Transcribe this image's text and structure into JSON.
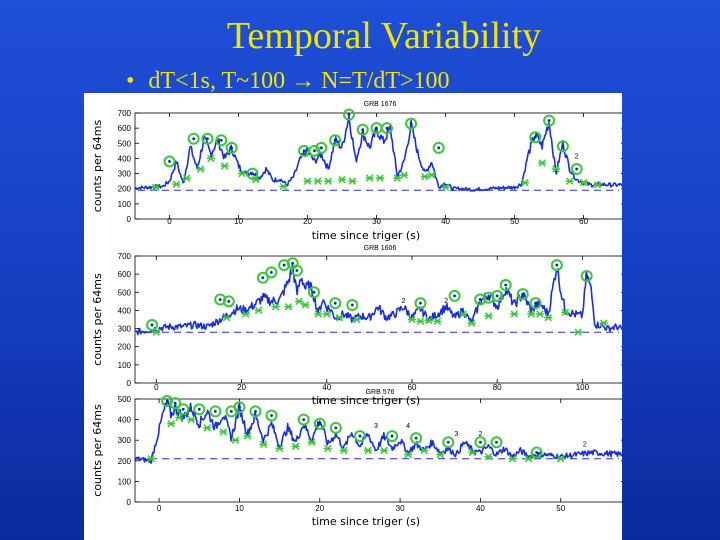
{
  "slide": {
    "title": "Temporal Variability",
    "bullet": "dT<1s,  T~100 → N=T/dT>100",
    "bullet_symbol": "•"
  },
  "colors": {
    "title": "#f2e600",
    "curve": "#1a2fd6",
    "peak_marker": "#39c739",
    "valley_marker": "#39c739",
    "baseline": "#1a2fd6"
  },
  "chart_data": [
    {
      "type": "line",
      "title": "GRB 1676",
      "xlabel": "time since triger (s)",
      "ylabel": "counts per 64ms",
      "xlim": [
        -5,
        66
      ],
      "ylim": [
        0,
        700
      ],
      "xticks": [
        0,
        10,
        20,
        30,
        40,
        50,
        60
      ],
      "yticks": [
        0,
        100,
        200,
        300,
        400,
        500,
        600,
        700
      ],
      "baseline": 190,
      "anchors": [
        [
          -5,
          205
        ],
        [
          -1,
          215
        ],
        [
          0,
          250
        ],
        [
          1,
          380
        ],
        [
          2,
          230
        ],
        [
          3,
          480
        ],
        [
          4,
          330
        ],
        [
          5,
          530
        ],
        [
          6,
          430
        ],
        [
          7,
          520
        ],
        [
          8,
          400
        ],
        [
          9,
          470
        ],
        [
          10,
          350
        ],
        [
          11,
          300
        ],
        [
          12,
          310
        ],
        [
          13,
          270
        ],
        [
          14,
          330
        ],
        [
          15,
          255
        ],
        [
          16,
          265
        ],
        [
          17,
          225
        ],
        [
          18,
          280
        ],
        [
          19,
          400
        ],
        [
          20,
          450
        ],
        [
          21,
          380
        ],
        [
          22,
          430
        ],
        [
          23,
          330
        ],
        [
          24,
          520
        ],
        [
          25,
          470
        ],
        [
          26,
          680
        ],
        [
          27,
          380
        ],
        [
          28,
          570
        ],
        [
          29,
          470
        ],
        [
          30,
          590
        ],
        [
          31,
          510
        ],
        [
          32,
          600
        ],
        [
          33,
          280
        ],
        [
          34,
          380
        ],
        [
          35,
          620
        ],
        [
          36,
          430
        ],
        [
          37,
          300
        ],
        [
          38,
          380
        ],
        [
          39,
          210
        ],
        [
          40,
          240
        ],
        [
          41,
          200
        ],
        [
          42,
          200
        ],
        [
          44,
          195
        ],
        [
          46,
          200
        ],
        [
          48,
          205
        ],
        [
          50,
          210
        ],
        [
          51,
          230
        ],
        [
          52,
          430
        ],
        [
          53,
          560
        ],
        [
          54,
          480
        ],
        [
          55,
          650
        ],
        [
          56,
          300
        ],
        [
          57,
          500
        ],
        [
          58,
          330
        ],
        [
          59,
          260
        ],
        [
          60,
          240
        ],
        [
          61,
          225
        ],
        [
          62,
          230
        ],
        [
          64,
          225
        ],
        [
          66,
          225
        ]
      ],
      "peaks": [
        [
          0,
          380
        ],
        [
          3.5,
          530
        ],
        [
          5.5,
          530
        ],
        [
          7.5,
          520
        ],
        [
          9,
          470
        ],
        [
          12,
          300
        ],
        [
          19.5,
          450
        ],
        [
          21,
          450
        ],
        [
          22,
          470
        ],
        [
          24,
          520
        ],
        [
          26,
          690
        ],
        [
          28,
          590
        ],
        [
          30,
          600
        ],
        [
          31.5,
          600
        ],
        [
          35,
          630
        ],
        [
          39,
          470
        ],
        [
          53,
          540
        ],
        [
          55,
          650
        ],
        [
          57,
          480
        ],
        [
          59,
          330
        ]
      ],
      "valleys": [
        [
          -2,
          210
        ],
        [
          1,
          230
        ],
        [
          2.5,
          270
        ],
        [
          4.5,
          330
        ],
        [
          6,
          400
        ],
        [
          8,
          350
        ],
        [
          10.5,
          300
        ],
        [
          12.5,
          260
        ],
        [
          16.5,
          215
        ],
        [
          20,
          250
        ],
        [
          21.5,
          250
        ],
        [
          23,
          250
        ],
        [
          25,
          260
        ],
        [
          26.5,
          250
        ],
        [
          29,
          270
        ],
        [
          30.5,
          270
        ],
        [
          33,
          270
        ],
        [
          34,
          290
        ],
        [
          37,
          280
        ],
        [
          38,
          290
        ],
        [
          40,
          210
        ],
        [
          51.5,
          240
        ],
        [
          54,
          370
        ],
        [
          56,
          330
        ],
        [
          58,
          250
        ],
        [
          60,
          240
        ],
        [
          62,
          225
        ]
      ],
      "labels": [
        {
          "text": "2",
          "x": 59,
          "y": 400
        }
      ]
    },
    {
      "type": "line",
      "title": "GRB 1606",
      "xlabel": "time since triger (s)",
      "ylabel": "counts per 64ms",
      "xlim": [
        -5,
        110
      ],
      "ylim": [
        0,
        700
      ],
      "xticks": [
        0,
        20,
        40,
        60,
        80,
        100
      ],
      "yticks": [
        0,
        100,
        200,
        300,
        400,
        500,
        600,
        700
      ],
      "baseline": 280,
      "anchors": [
        [
          -5,
          280
        ],
        [
          -2,
          290
        ],
        [
          0,
          300
        ],
        [
          3,
          310
        ],
        [
          6,
          310
        ],
        [
          9,
          320
        ],
        [
          12,
          310
        ],
        [
          15,
          350
        ],
        [
          17,
          380
        ],
        [
          19,
          410
        ],
        [
          21,
          400
        ],
        [
          23,
          430
        ],
        [
          25,
          470
        ],
        [
          27,
          450
        ],
        [
          29,
          460
        ],
        [
          31,
          560
        ],
        [
          32,
          640
        ],
        [
          33,
          490
        ],
        [
          34,
          590
        ],
        [
          35,
          520
        ],
        [
          36,
          540
        ],
        [
          37,
          480
        ],
        [
          38,
          380
        ],
        [
          39,
          460
        ],
        [
          40,
          420
        ],
        [
          41,
          400
        ],
        [
          42,
          360
        ],
        [
          44,
          380
        ],
        [
          46,
          350
        ],
        [
          48,
          370
        ],
        [
          50,
          360
        ],
        [
          52,
          420
        ],
        [
          54,
          360
        ],
        [
          56,
          380
        ],
        [
          58,
          420
        ],
        [
          60,
          360
        ],
        [
          62,
          410
        ],
        [
          64,
          350
        ],
        [
          66,
          380
        ],
        [
          68,
          420
        ],
        [
          70,
          360
        ],
        [
          72,
          400
        ],
        [
          74,
          330
        ],
        [
          76,
          450
        ],
        [
          78,
          490
        ],
        [
          80,
          420
        ],
        [
          82,
          520
        ],
        [
          84,
          430
        ],
        [
          86,
          490
        ],
        [
          88,
          400
        ],
        [
          90,
          440
        ],
        [
          92,
          380
        ],
        [
          94,
          650
        ],
        [
          95,
          500
        ],
        [
          96,
          400
        ],
        [
          98,
          380
        ],
        [
          100,
          370
        ],
        [
          101,
          600
        ],
        [
          102,
          520
        ],
        [
          103,
          320
        ],
        [
          104,
          320
        ],
        [
          106,
          300
        ],
        [
          108,
          310
        ],
        [
          110,
          290
        ]
      ],
      "peaks": [
        [
          -1,
          320
        ],
        [
          15,
          460
        ],
        [
          17,
          450
        ],
        [
          25,
          580
        ],
        [
          27,
          610
        ],
        [
          30,
          650
        ],
        [
          32,
          660
        ],
        [
          33,
          620
        ],
        [
          37,
          500
        ],
        [
          42,
          440
        ],
        [
          46,
          430
        ],
        [
          62,
          440
        ],
        [
          70,
          480
        ],
        [
          76,
          460
        ],
        [
          78,
          470
        ],
        [
          80,
          480
        ],
        [
          82,
          540
        ],
        [
          86,
          490
        ],
        [
          89,
          440
        ],
        [
          94,
          650
        ],
        [
          101,
          590
        ]
      ],
      "valleys": [
        [
          0,
          280
        ],
        [
          16.5,
          360
        ],
        [
          21,
          380
        ],
        [
          24,
          400
        ],
        [
          28,
          420
        ],
        [
          31,
          420
        ],
        [
          33.5,
          450
        ],
        [
          35,
          430
        ],
        [
          38,
          380
        ],
        [
          40,
          380
        ],
        [
          43,
          360
        ],
        [
          47,
          350
        ],
        [
          60,
          350
        ],
        [
          62,
          340
        ],
        [
          64,
          345
        ],
        [
          66,
          340
        ],
        [
          72,
          380
        ],
        [
          74,
          330
        ],
        [
          78,
          370
        ],
        [
          84,
          380
        ],
        [
          88,
          380
        ],
        [
          90,
          380
        ],
        [
          92,
          360
        ],
        [
          96,
          390
        ],
        [
          99,
          280
        ],
        [
          105,
          330
        ]
      ],
      "labels": [
        {
          "text": "2",
          "x": 58,
          "y": 440
        },
        {
          "text": "2",
          "x": 68,
          "y": 440
        }
      ]
    },
    {
      "type": "line",
      "title": "GRB 576",
      "xlabel": "time since triger (s)",
      "ylabel": "counts per 64ms",
      "xlim": [
        -3,
        58
      ],
      "ylim": [
        0,
        500
      ],
      "xticks": [
        0,
        10,
        20,
        30,
        40,
        50
      ],
      "yticks": [
        0,
        100,
        200,
        300,
        400,
        500
      ],
      "baseline": 210,
      "anchors": [
        [
          -3,
          210
        ],
        [
          -1,
          200
        ],
        [
          0,
          350
        ],
        [
          0.5,
          430
        ],
        [
          1,
          480
        ],
        [
          1.5,
          420
        ],
        [
          2,
          460
        ],
        [
          3,
          410
        ],
        [
          4,
          460
        ],
        [
          5,
          380
        ],
        [
          6,
          440
        ],
        [
          7,
          360
        ],
        [
          8,
          430
        ],
        [
          9,
          310
        ],
        [
          10,
          460
        ],
        [
          11,
          330
        ],
        [
          12,
          420
        ],
        [
          13,
          300
        ],
        [
          14,
          380
        ],
        [
          15,
          270
        ],
        [
          16,
          360
        ],
        [
          17,
          290
        ],
        [
          18,
          380
        ],
        [
          19,
          300
        ],
        [
          20,
          400
        ],
        [
          21,
          280
        ],
        [
          22,
          330
        ],
        [
          23,
          260
        ],
        [
          24,
          340
        ],
        [
          25,
          270
        ],
        [
          26,
          330
        ],
        [
          27,
          250
        ],
        [
          28,
          320
        ],
        [
          29,
          260
        ],
        [
          30,
          300
        ],
        [
          31,
          240
        ],
        [
          32,
          280
        ],
        [
          33,
          250
        ],
        [
          34,
          290
        ],
        [
          35,
          240
        ],
        [
          36,
          260
        ],
        [
          37,
          230
        ],
        [
          38,
          290
        ],
        [
          39,
          250
        ],
        [
          40,
          240
        ],
        [
          41,
          270
        ],
        [
          42,
          230
        ],
        [
          43,
          260
        ],
        [
          44,
          220
        ],
        [
          45,
          250
        ],
        [
          46,
          220
        ],
        [
          47,
          230
        ],
        [
          48,
          230
        ],
        [
          50,
          220
        ],
        [
          52,
          230
        ],
        [
          54,
          240
        ],
        [
          56,
          235
        ],
        [
          58,
          230
        ]
      ],
      "peaks": [
        [
          1,
          490
        ],
        [
          2,
          480
        ],
        [
          3,
          450
        ],
        [
          5,
          450
        ],
        [
          7,
          440
        ],
        [
          9,
          440
        ],
        [
          10,
          460
        ],
        [
          12,
          440
        ],
        [
          14,
          420
        ],
        [
          18,
          400
        ],
        [
          20,
          380
        ],
        [
          22,
          360
        ],
        [
          25,
          320
        ],
        [
          29,
          320
        ],
        [
          32,
          310
        ],
        [
          36,
          290
        ],
        [
          40,
          290
        ],
        [
          42,
          290
        ],
        [
          47,
          240
        ]
      ],
      "valleys": [
        [
          -1,
          210
        ],
        [
          1.5,
          380
        ],
        [
          2.5,
          410
        ],
        [
          4,
          400
        ],
        [
          6,
          360
        ],
        [
          8,
          340
        ],
        [
          9.5,
          300
        ],
        [
          11,
          320
        ],
        [
          13,
          280
        ],
        [
          15,
          260
        ],
        [
          17,
          270
        ],
        [
          19,
          290
        ],
        [
          21,
          260
        ],
        [
          23,
          250
        ],
        [
          26,
          250
        ],
        [
          28,
          250
        ],
        [
          31,
          230
        ],
        [
          33,
          250
        ],
        [
          35,
          230
        ],
        [
          39,
          240
        ],
        [
          41,
          220
        ],
        [
          44,
          210
        ],
        [
          46,
          210
        ],
        [
          50,
          210
        ]
      ],
      "labels": [
        {
          "text": "3",
          "x": 27,
          "y": 360
        },
        {
          "text": "4",
          "x": 31,
          "y": 360
        },
        {
          "text": "3",
          "x": 37,
          "y": 320
        },
        {
          "text": "2",
          "x": 40,
          "y": 320
        },
        {
          "text": "2",
          "x": 53,
          "y": 270
        }
      ]
    }
  ]
}
